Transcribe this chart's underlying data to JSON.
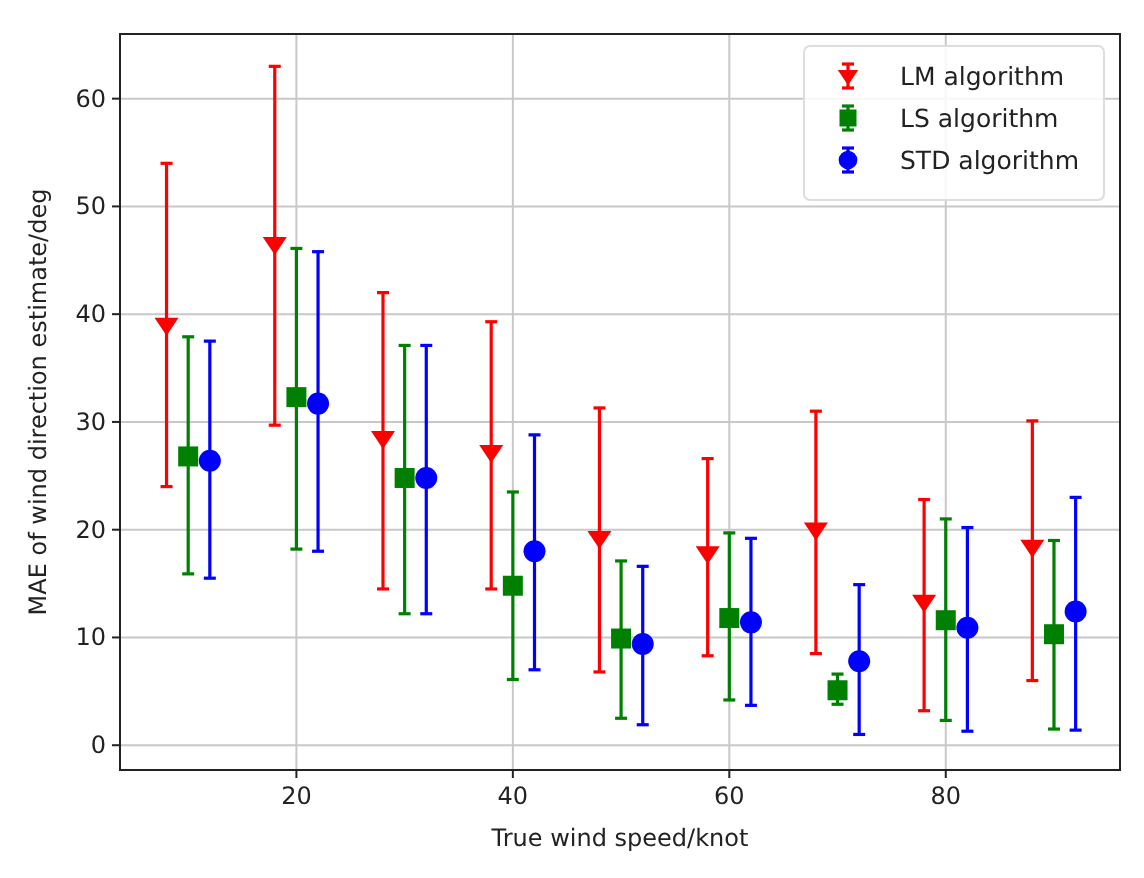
{
  "chart_data": {
    "type": "scatter",
    "xlabel": "True wind speed/knot",
    "ylabel": "MAE of wind direction estimate/deg",
    "xlim": [
      3.7,
      96.1
    ],
    "ylim": [
      -2.3,
      66
    ],
    "xticks": [
      20,
      40,
      60,
      80
    ],
    "yticks": [
      0,
      10,
      20,
      30,
      40,
      50,
      60
    ],
    "grid": true,
    "legend": "top right",
    "series": [
      {
        "name": "LM algorithm",
        "color": "#ff0000",
        "marker": "triangle",
        "x": [
          8,
          18,
          28,
          38,
          48,
          58,
          68,
          78,
          88
        ],
        "values": [
          39,
          46.5,
          28.5,
          27.2,
          19.2,
          17.8,
          20,
          13.3,
          18.4
        ],
        "errors": [
          [
            24,
            54
          ],
          [
            29.7,
            63
          ],
          [
            14.5,
            42
          ],
          [
            14.5,
            39.3
          ],
          [
            6.8,
            31.3
          ],
          [
            8.3,
            26.6
          ],
          [
            8.5,
            31
          ],
          [
            3.2,
            22.8
          ],
          [
            6,
            30.1
          ]
        ]
      },
      {
        "name": "LS algorithm",
        "color": "#008000",
        "marker": "square",
        "x": [
          10,
          20,
          30,
          40,
          50,
          60,
          70,
          80,
          90
        ],
        "values": [
          26.8,
          32.3,
          24.8,
          14.8,
          9.9,
          11.8,
          5.1,
          11.6,
          10.3
        ],
        "errors": [
          [
            15.9,
            37.9
          ],
          [
            18.2,
            46.1
          ],
          [
            12.2,
            37.1
          ],
          [
            6.1,
            23.5
          ],
          [
            2.5,
            17.1
          ],
          [
            4.2,
            19.7
          ],
          [
            3.8,
            6.6
          ],
          [
            2.3,
            21
          ],
          [
            1.5,
            19
          ]
        ]
      },
      {
        "name": "STD algorithm",
        "color": "#0000ff",
        "marker": "circle",
        "x": [
          12,
          22,
          32,
          42,
          52,
          62,
          72,
          82,
          92
        ],
        "values": [
          26.4,
          31.7,
          24.8,
          18,
          9.4,
          11.4,
          7.8,
          10.9,
          12.4
        ],
        "errors": [
          [
            15.5,
            37.5
          ],
          [
            18,
            45.8
          ],
          [
            12.2,
            37.1
          ],
          [
            7,
            28.8
          ],
          [
            1.9,
            16.6
          ],
          [
            3.7,
            19.2
          ],
          [
            1,
            14.9
          ],
          [
            1.3,
            20.2
          ],
          [
            1.4,
            23
          ]
        ]
      }
    ]
  }
}
